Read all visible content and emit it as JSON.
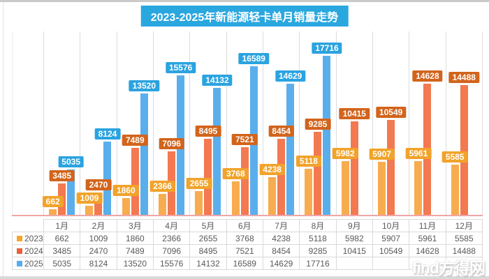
{
  "title": "2023-2025年新能源轻卡单月销量走势",
  "watermark": "find方得网",
  "colors": {
    "title_bg": "#2aa7df",
    "grid_line": "#dcdcdc",
    "axis_line": "#f1a6a6",
    "table_border": "#d9d9d9",
    "table_text": "#595959"
  },
  "chart_data": {
    "type": "bar",
    "title": "2023-2025年新能源轻卡单月销量走势",
    "categories": [
      "1月",
      "2月",
      "3月",
      "4月",
      "5月",
      "6月",
      "7月",
      "8月",
      "9月",
      "10月",
      "11月",
      "12月"
    ],
    "series": [
      {
        "name": "2023",
        "bar_color": "#f7ac4f",
        "label_bg": "#f1a32b",
        "legend_color": "#f5a62b",
        "values": [
          662,
          1009,
          1860,
          2366,
          2655,
          3768,
          4238,
          5118,
          5982,
          5907,
          5961,
          5585
        ]
      },
      {
        "name": "2024",
        "bar_color": "#f37950",
        "label_bg": "#d2641c",
        "legend_color": "#e9603b",
        "values": [
          3485,
          2470,
          7489,
          7096,
          8495,
          7521,
          8454,
          9285,
          10415,
          10549,
          14628,
          14488
        ]
      },
      {
        "name": "2025",
        "bar_color": "#5baeec",
        "label_bg": "#2ba3e0",
        "legend_color": "#55acee",
        "values": [
          5035,
          8124,
          13520,
          15576,
          14132,
          16589,
          14629,
          17716,
          null,
          null,
          null,
          null
        ]
      }
    ],
    "ylim": [
      0,
      17716
    ],
    "grid": "vertical-only",
    "value_labels": "above-bars",
    "legend_position": "table-first-column",
    "xlabel": "",
    "ylabel": ""
  }
}
